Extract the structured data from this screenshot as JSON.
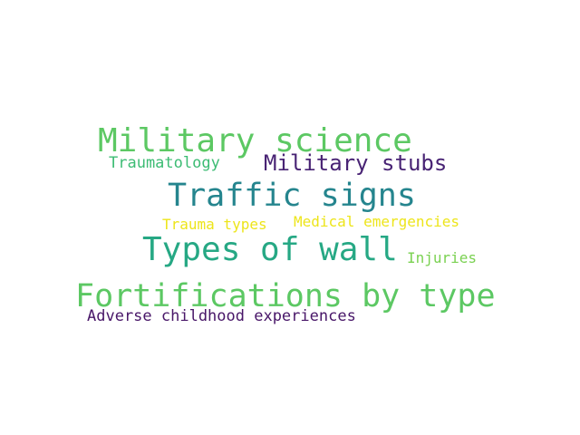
{
  "word_cloud": {
    "words": [
      {
        "text": "Military science",
        "color": "#5cc863"
      },
      {
        "text": "Traumatology",
        "color": "#3dbc74"
      },
      {
        "text": "Military stubs",
        "color": "#482374"
      },
      {
        "text": "Traffic signs",
        "color": "#25858e"
      },
      {
        "text": "Trauma types",
        "color": "#ede51b"
      },
      {
        "text": "Medical emergencies",
        "color": "#ede51b"
      },
      {
        "text": "Types of wall",
        "color": "#26a884"
      },
      {
        "text": "Injuries",
        "color": "#7ad151"
      },
      {
        "text": "Fortifications by type",
        "color": "#5cc863"
      },
      {
        "text": "Adverse childhood experiences",
        "color": "#481668"
      }
    ]
  }
}
